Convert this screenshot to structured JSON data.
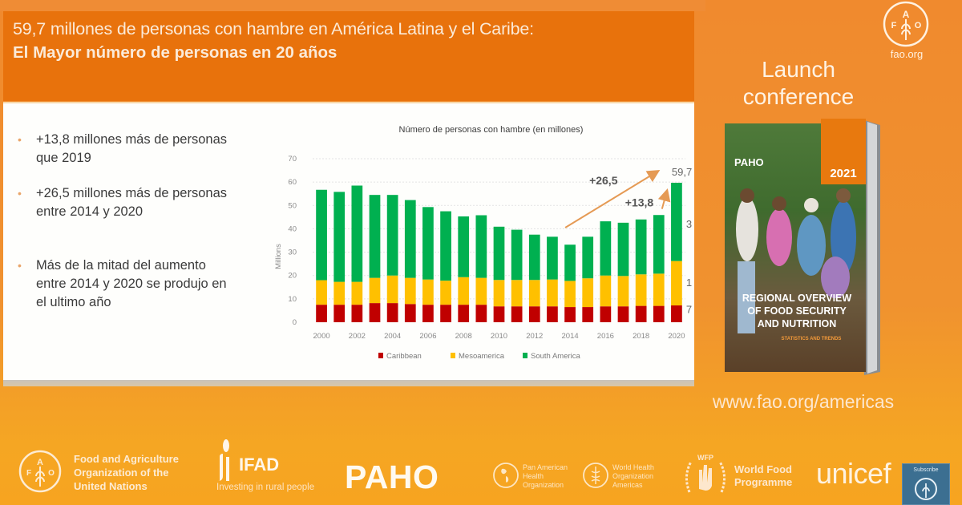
{
  "slide": {
    "title_line1": "59,7 millones de personas con hambre en América Latina y el Caribe:",
    "title_line2": "El Mayor número de personas en 20 años",
    "bullets": [
      {
        "line1": "+13,8 millones más de personas",
        "line2": "que 2019",
        "line3": ""
      },
      {
        "line1": "+26,5 millones más de personas",
        "line2": "entre 2014 y 2020",
        "line3": ""
      },
      {
        "line1": "Más de la mitad del aumento",
        "line2": "entre 2014 y 2020 se produjo en",
        "line3": "el ultimo año"
      }
    ],
    "bullet_symbol": "•"
  },
  "chart_data": {
    "type": "bar",
    "stacked": true,
    "title": "Número de personas con hambre (en millones)",
    "xlabel": "",
    "ylabel": "Millions",
    "ylim": [
      0,
      70
    ],
    "yticks": [
      0,
      10,
      20,
      30,
      40,
      50,
      60,
      70
    ],
    "grid": true,
    "categories": [
      "2000",
      "2001",
      "2002",
      "2003",
      "2004",
      "2005",
      "2006",
      "2007",
      "2008",
      "2009",
      "2010",
      "2011",
      "2012",
      "2013",
      "2014",
      "2015",
      "2016",
      "2017",
      "2018",
      "2019",
      "2020"
    ],
    "xtick_labels": [
      "2000",
      "2002",
      "2004",
      "2006",
      "2008",
      "2010",
      "2012",
      "2014",
      "2016",
      "2018",
      "2020"
    ],
    "series": [
      {
        "name": "Caribbean",
        "color": "#c00000",
        "values": [
          7.5,
          7.5,
          7.5,
          8.2,
          8.2,
          7.8,
          7.5,
          7.5,
          7.5,
          7.5,
          6.8,
          6.8,
          6.8,
          6.8,
          6.5,
          6.5,
          6.8,
          6.8,
          7.0,
          7.0,
          7.2
        ]
      },
      {
        "name": "Mesoamerica",
        "color": "#ffc000",
        "values": [
          10.5,
          9.8,
          9.8,
          10.8,
          11.8,
          11.2,
          10.8,
          10.3,
          11.8,
          11.5,
          11.3,
          11.3,
          11.3,
          11.5,
          11.2,
          12.3,
          13.2,
          13.0,
          13.5,
          13.8,
          19.0
        ]
      },
      {
        "name": "South America",
        "color": "#00b050",
        "values": [
          38.7,
          38.5,
          41.2,
          35.5,
          34.5,
          33.3,
          31.0,
          29.7,
          26.0,
          26.8,
          22.8,
          21.5,
          19.4,
          18.3,
          15.5,
          17.8,
          23.2,
          22.8,
          23.5,
          25.1,
          33.5
        ]
      }
    ],
    "legend": {
      "position": "bottom",
      "entries": [
        "Caribbean",
        "Mesoamerica",
        "South America"
      ]
    },
    "annotations": [
      {
        "text": "+26,5",
        "from": "2014",
        "to": "2020",
        "arrow_color": "#e59a54"
      },
      {
        "text": "+13,8",
        "from": "2019",
        "to": "2020",
        "arrow_color": "#e59a54"
      },
      {
        "text": "59,7",
        "at": "2020",
        "role": "total"
      }
    ],
    "edge_labels": [
      "3",
      "1",
      "7"
    ]
  },
  "side": {
    "fao_org": "fao.org",
    "launch_line1": "Launch",
    "launch_line2": "conference",
    "website": "www.fao.org/americas",
    "book": {
      "publisher": "PAHO",
      "year": "2021",
      "title_line1": "REGIONAL OVERVIEW",
      "title_line2": "OF FOOD SECURITY",
      "title_line3": "AND NUTRITION",
      "subtitle": "STATISTICS AND TRENDS"
    }
  },
  "footer": {
    "fao_line1": "Food and Agriculture",
    "fao_line2": "Organization of the",
    "fao_line3": "United Nations",
    "ifad_name": "IFAD",
    "ifad_tagline": "Investing in rural people",
    "paho_name": "PAHO",
    "paho_sub_line1": "Pan American",
    "paho_sub_line2": "Health",
    "paho_sub_line3": "Organization",
    "who_sub_line1": "World Health",
    "who_sub_line2": "Organization",
    "who_sub_line3": "Americas",
    "wfp_abbr": "WFP",
    "wfp_line1": "World Food",
    "wfp_line2": "Programme",
    "unicef": "unicef",
    "subscribe": "Subscribe"
  },
  "colors": {
    "header_orange": "#e8720c",
    "background_orange": "#f0922f",
    "slide_white": "#fefefc"
  }
}
